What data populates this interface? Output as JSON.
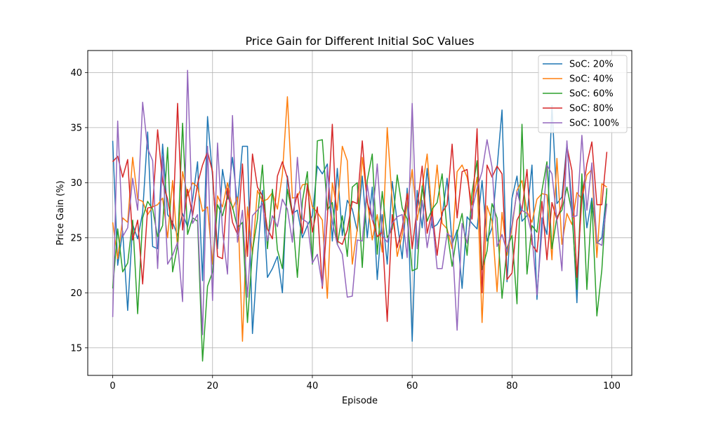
{
  "chart_data": {
    "type": "line",
    "title": "Price Gain for Different Initial SoC Values",
    "xlabel": "Episode",
    "ylabel": "Price Gain (%)",
    "xlim": [
      -5,
      104
    ],
    "ylim": [
      12.5,
      42
    ],
    "xticks": [
      0,
      20,
      40,
      60,
      80,
      100
    ],
    "yticks": [
      15,
      20,
      25,
      30,
      35,
      40
    ],
    "grid": true,
    "legend_position": "top-right",
    "series": [
      {
        "name": "SoC: 20%",
        "color": "#1f77b4",
        "values": [
          33.8,
          22.5,
          25.6,
          18.4,
          26.2,
          24.9,
          27.3,
          34.6,
          24.2,
          24.0,
          33.5,
          27.1,
          26.4,
          25.2,
          27.2,
          26.0,
          28.4,
          31.9,
          21.1,
          36.0,
          30.6,
          24.0,
          31.2,
          28.5,
          32.3,
          28.0,
          33.3,
          33.3,
          16.3,
          23.2,
          29.3,
          21.4,
          22.2,
          23.3,
          20.0,
          30.6,
          27.2,
          27.5,
          25.0,
          26.1,
          27.0,
          31.5,
          30.8,
          31.7,
          24.7,
          31.3,
          25.2,
          28.4,
          27.6,
          25.6,
          30.6,
          25.0,
          29.6,
          21.2,
          27.1,
          22.6,
          30.1,
          26.4,
          23.1,
          29.5,
          15.6,
          29.3,
          25.9,
          31.3,
          25.9,
          26.2,
          27.0,
          30.4,
          24.4,
          25.7,
          20.4,
          26.9,
          26.3,
          25.8,
          30.2,
          24.7,
          25.9,
          31.3,
          36.6,
          21.0,
          28.6,
          30.6,
          26.5,
          27.0,
          31.6,
          19.4,
          26.8,
          25.3,
          37.0,
          28.1,
          28.7,
          33.5,
          28.2,
          19.1,
          30.4,
          25.9,
          28.6,
          24.5,
          25.0,
          29.3
        ]
      },
      {
        "name": "SoC: 40%",
        "color": "#ff7f0e",
        "values": [
          26.4,
          23.1,
          26.8,
          26.4,
          32.3,
          28.5,
          28.3,
          27.1,
          27.8,
          28.0,
          28.6,
          25.0,
          30.2,
          24.0,
          31.0,
          28.8,
          30.0,
          29.6,
          27.4,
          27.8,
          22.6,
          28.8,
          27.8,
          30.0,
          27.6,
          28.7,
          15.6,
          27.8,
          23.5,
          29.3,
          28.3,
          28.5,
          29.1,
          27.6,
          30.8,
          37.8,
          28.6,
          28.7,
          29.8,
          29.9,
          27.8,
          27.3,
          26.6,
          19.5,
          30.0,
          27.5,
          33.3,
          32.0,
          22.6,
          25.8,
          32.3,
          28.4,
          24.8,
          27.1,
          23.7,
          35.0,
          28.3,
          23.3,
          25.3,
          28.0,
          31.2,
          26.6,
          29.5,
          32.6,
          26.9,
          31.6,
          26.3,
          25.8,
          24.0,
          31.0,
          31.6,
          30.5,
          28.0,
          30.5,
          17.3,
          27.9,
          26.5,
          20.1,
          27.3,
          23.4,
          25.9,
          29.3,
          30.2,
          27.4,
          26.4,
          28.5,
          29.0,
          28.9,
          23.0,
          32.2,
          24.4,
          27.2,
          26.2,
          29.1,
          28.5,
          30.7,
          31.2,
          23.2,
          29.9,
          29.6
        ]
      },
      {
        "name": "SoC: 60%",
        "color": "#2ca02c",
        "values": [
          20.4,
          25.8,
          21.9,
          22.7,
          26.6,
          18.1,
          26.8,
          28.3,
          27.6,
          25.1,
          26.1,
          33.2,
          21.9,
          24.3,
          35.4,
          25.3,
          26.8,
          26.5,
          13.8,
          20.6,
          21.9,
          28.0,
          27.0,
          28.8,
          27.8,
          25.9,
          26.4,
          17.3,
          23.8,
          26.7,
          31.6,
          24.0,
          29.4,
          23.9,
          22.2,
          29.4,
          27.1,
          21.4,
          28.3,
          31.0,
          22.6,
          33.8,
          33.9,
          27.5,
          28.2,
          24.4,
          27.0,
          23.3,
          29.6,
          30.0,
          22.3,
          30.2,
          32.6,
          23.5,
          29.2,
          25.0,
          25.8,
          30.7,
          27.7,
          26.7,
          22.0,
          22.2,
          29.7,
          26.5,
          27.6,
          28.2,
          30.8,
          25.6,
          22.4,
          25.4,
          27.2,
          23.4,
          29.1,
          32.0,
          22.1,
          23.8,
          28.1,
          26.8,
          19.5,
          24.1,
          25.2,
          19.0,
          35.3,
          21.7,
          26.1,
          25.5,
          29.3,
          31.9,
          24.0,
          26.9,
          27.5,
          29.6,
          27.3,
          20.3,
          30.8,
          20.3,
          28.3,
          17.9,
          22.1,
          29.5
        ]
      },
      {
        "name": "SoC: 80%",
        "color": "#d62728",
        "values": [
          31.9,
          32.4,
          30.5,
          32.1,
          24.8,
          26.6,
          20.8,
          27.7,
          27.8,
          34.8,
          30.1,
          28.5,
          25.8,
          37.2,
          25.7,
          29.4,
          27.0,
          29.9,
          31.6,
          32.8,
          31.0,
          23.3,
          23.1,
          29.5,
          26.4,
          25.3,
          31.7,
          23.3,
          32.6,
          29.6,
          28.8,
          25.8,
          24.9,
          30.6,
          31.9,
          30.4,
          27.1,
          29.0,
          25.4,
          29.8,
          25.5,
          27.8,
          20.4,
          26.8,
          35.3,
          24.7,
          24.4,
          25.7,
          28.3,
          28.1,
          33.8,
          28.2,
          26.7,
          25.1,
          25.5,
          17.4,
          27.1,
          24.1,
          25.9,
          29.0,
          24.0,
          27.8,
          31.5,
          25.4,
          27.4,
          23.4,
          27.3,
          28.0,
          33.5,
          26.8,
          31.0,
          31.2,
          26.7,
          34.9,
          20.0,
          31.6,
          30.5,
          31.5,
          30.8,
          21.2,
          21.8,
          26.6,
          27.5,
          31.2,
          24.4,
          23.7,
          28.3,
          23.0,
          28.2,
          26.6,
          28.0,
          33.3,
          31.1,
          21.4,
          28.6,
          31.7,
          33.7,
          28.0,
          28.0,
          32.8
        ]
      },
      {
        "name": "SoC: 100%",
        "color": "#9467bd",
        "values": [
          17.8,
          35.6,
          25.1,
          25.9,
          30.4,
          27.5,
          37.3,
          33.1,
          32.0,
          22.2,
          32.4,
          22.6,
          23.4,
          24.6,
          19.2,
          40.2,
          26.3,
          27.1,
          16.2,
          33.3,
          19.3,
          33.6,
          25.6,
          21.7,
          36.1,
          24.6,
          27.5,
          19.6,
          27.0,
          27.5,
          28.1,
          24.7,
          27.0,
          26.0,
          28.5,
          27.6,
          24.6,
          32.3,
          26.7,
          26.4,
          22.7,
          23.5,
          20.6,
          31.4,
          26.4,
          24.4,
          23.5,
          19.6,
          19.7,
          24.8,
          24.7,
          29.8,
          26.6,
          31.7,
          25.2,
          24.6,
          26.3,
          26.9,
          27.1,
          23.2,
          37.2,
          24.0,
          28.4,
          24.1,
          26.9,
          22.2,
          22.2,
          25.4,
          25.0,
          16.6,
          26.3,
          24.5,
          27.5,
          29.5,
          31.0,
          33.9,
          31.4,
          24.2,
          25.3,
          23.7,
          26.2,
          29.2,
          27.5,
          27.2,
          25.2,
          19.8,
          25.6,
          31.6,
          30.8,
          26.6,
          22.0,
          33.8,
          26.9,
          27.0,
          34.3,
          27.5,
          31.8,
          24.6,
          24.3,
          28.1
        ]
      }
    ]
  }
}
